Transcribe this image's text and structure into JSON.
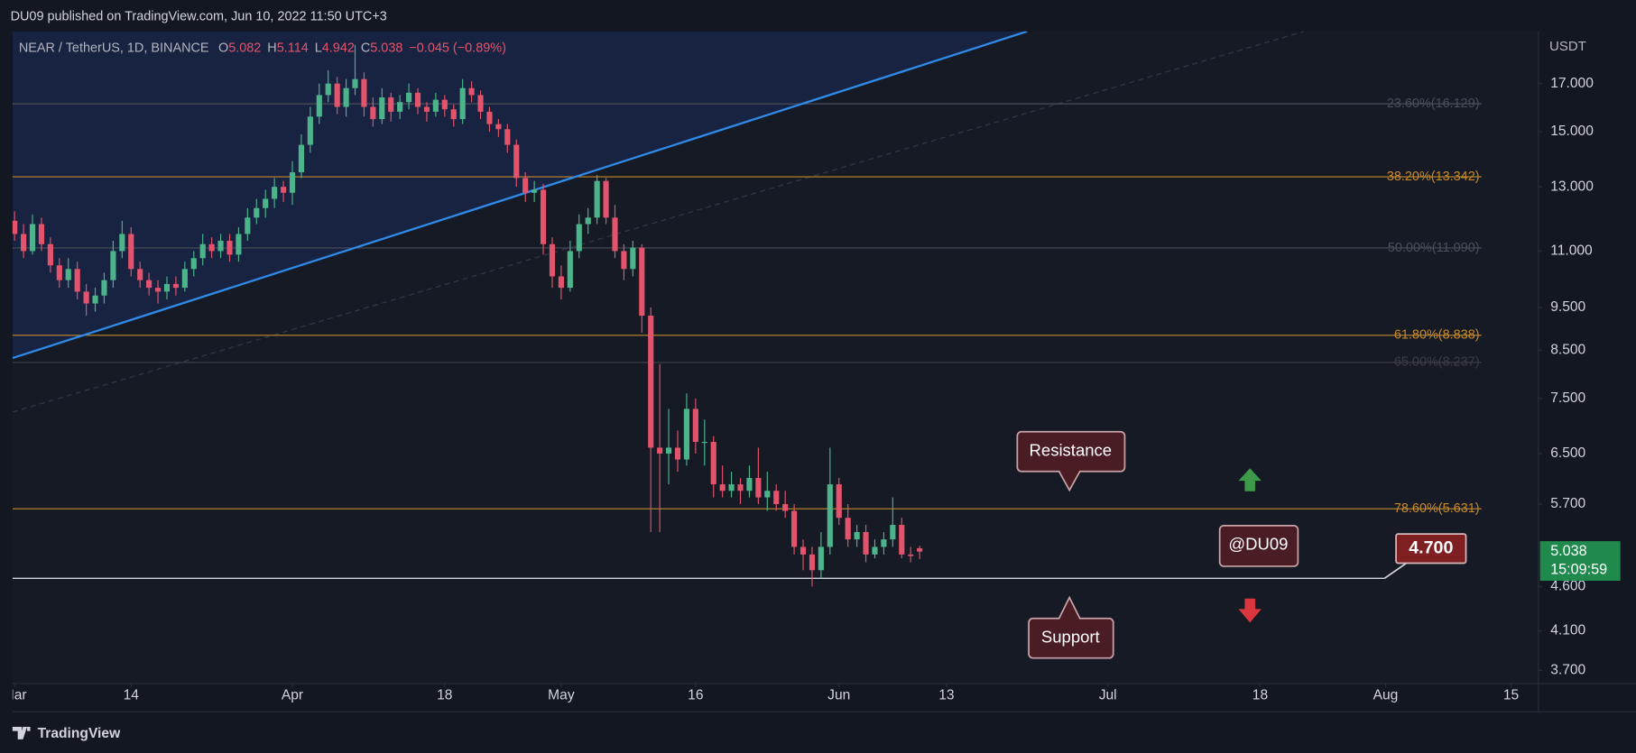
{
  "header": "DU09 published on TradingView.com, Jun 10, 2022 11:50 UTC+3",
  "footer": "TradingView",
  "chart_data": {
    "type": "candlestick",
    "symbol": "NEAR / TetherUS, 1D, BINANCE",
    "ohlc_labels": [
      "O",
      "H",
      "L",
      "C"
    ],
    "change": "−0.045 (−0.89%)",
    "currency": "USDT",
    "log_scale": true,
    "up_color": "#4bb48a",
    "down_color": "#e3536b",
    "x": [
      0,
      1,
      2,
      3,
      4,
      5,
      6,
      7,
      8,
      9,
      10,
      11,
      12,
      13,
      14,
      15,
      16,
      17,
      18,
      19,
      20,
      21,
      22,
      23,
      24,
      25,
      26,
      27,
      28,
      29,
      30,
      31,
      32,
      33,
      34,
      35,
      36,
      37,
      38,
      39,
      40,
      41,
      42,
      43,
      44,
      45,
      46,
      47,
      48,
      49,
      50,
      51,
      52,
      53,
      54,
      55,
      56,
      57,
      58,
      59,
      60,
      61,
      62,
      63,
      64,
      65,
      66,
      67,
      68,
      69,
      70,
      71,
      72,
      73,
      74,
      75,
      76,
      77,
      78,
      79,
      80,
      81,
      82,
      83,
      84,
      85,
      86,
      87,
      88,
      89,
      90,
      91,
      92,
      93,
      94,
      95,
      96,
      97,
      98,
      99,
      100,
      101
    ],
    "ohlc": [
      [
        11.9,
        12.2,
        11.3,
        11.5
      ],
      [
        11.5,
        11.8,
        10.8,
        11.0
      ],
      [
        11.0,
        12.1,
        10.9,
        11.8
      ],
      [
        11.8,
        12.0,
        11.0,
        11.2
      ],
      [
        11.2,
        11.4,
        10.4,
        10.6
      ],
      [
        10.6,
        10.8,
        10.0,
        10.2
      ],
      [
        10.2,
        10.8,
        10.0,
        10.5
      ],
      [
        10.5,
        10.7,
        9.7,
        9.9
      ],
      [
        9.9,
        10.1,
        9.3,
        9.6
      ],
      [
        9.6,
        10.0,
        9.4,
        9.8
      ],
      [
        9.8,
        10.4,
        9.6,
        10.2
      ],
      [
        10.2,
        11.3,
        10.0,
        11.0
      ],
      [
        11.0,
        11.9,
        10.8,
        11.5
      ],
      [
        11.5,
        11.7,
        10.3,
        10.5
      ],
      [
        10.5,
        10.7,
        10.0,
        10.2
      ],
      [
        10.2,
        10.4,
        9.8,
        10.0
      ],
      [
        10.0,
        10.2,
        9.6,
        9.9
      ],
      [
        9.9,
        10.3,
        9.7,
        10.1
      ],
      [
        10.1,
        10.3,
        9.8,
        10.0
      ],
      [
        10.0,
        10.7,
        9.9,
        10.5
      ],
      [
        10.5,
        11.0,
        10.3,
        10.8
      ],
      [
        10.8,
        11.5,
        10.6,
        11.2
      ],
      [
        11.2,
        11.4,
        10.8,
        11.0
      ],
      [
        11.0,
        11.5,
        10.8,
        11.3
      ],
      [
        11.3,
        11.5,
        10.7,
        10.9
      ],
      [
        10.9,
        11.7,
        10.7,
        11.5
      ],
      [
        11.5,
        12.3,
        11.3,
        12.0
      ],
      [
        12.0,
        12.6,
        11.8,
        12.3
      ],
      [
        12.3,
        12.9,
        12.0,
        12.6
      ],
      [
        12.6,
        13.3,
        12.3,
        13.0
      ],
      [
        13.0,
        13.2,
        12.5,
        12.8
      ],
      [
        12.8,
        13.9,
        12.4,
        13.5
      ],
      [
        13.5,
        14.9,
        13.3,
        14.5
      ],
      [
        14.5,
        16.0,
        14.2,
        15.6
      ],
      [
        15.6,
        17.0,
        15.3,
        16.5
      ],
      [
        16.5,
        17.6,
        16.2,
        17.0
      ],
      [
        17.0,
        17.3,
        15.7,
        16.0
      ],
      [
        16.0,
        17.2,
        15.6,
        16.8
      ],
      [
        16.8,
        18.8,
        16.5,
        17.2
      ],
      [
        17.2,
        17.5,
        15.6,
        16.0
      ],
      [
        16.0,
        16.4,
        15.2,
        15.5
      ],
      [
        15.5,
        16.8,
        15.3,
        16.4
      ],
      [
        16.4,
        16.6,
        15.4,
        15.8
      ],
      [
        15.8,
        16.5,
        15.5,
        16.2
      ],
      [
        16.2,
        17.0,
        15.9,
        16.6
      ],
      [
        16.6,
        16.8,
        15.7,
        16.0
      ],
      [
        16.0,
        16.2,
        15.4,
        15.8
      ],
      [
        15.8,
        16.6,
        15.6,
        16.3
      ],
      [
        16.3,
        16.5,
        15.6,
        15.9
      ],
      [
        15.9,
        16.1,
        15.2,
        15.5
      ],
      [
        15.5,
        17.2,
        15.3,
        16.8
      ],
      [
        16.8,
        17.1,
        16.2,
        16.5
      ],
      [
        16.5,
        16.7,
        15.5,
        15.8
      ],
      [
        15.8,
        16.0,
        15.0,
        15.3
      ],
      [
        15.3,
        15.5,
        14.8,
        15.1
      ],
      [
        15.1,
        15.3,
        14.2,
        14.5
      ],
      [
        14.5,
        14.7,
        13.0,
        13.3
      ],
      [
        13.3,
        13.5,
        12.5,
        12.8
      ],
      [
        12.8,
        13.2,
        12.5,
        12.9
      ],
      [
        12.9,
        13.1,
        10.9,
        11.2
      ],
      [
        11.2,
        11.4,
        10.0,
        10.3
      ],
      [
        10.3,
        10.6,
        9.7,
        10.0
      ],
      [
        10.0,
        11.3,
        9.9,
        11.0
      ],
      [
        11.0,
        12.1,
        10.8,
        11.8
      ],
      [
        11.8,
        12.3,
        11.5,
        12.0
      ],
      [
        12.0,
        13.4,
        11.8,
        13.2
      ],
      [
        13.2,
        13.3,
        11.8,
        12.0
      ],
      [
        12.0,
        12.4,
        10.8,
        11.0
      ],
      [
        11.0,
        11.2,
        10.2,
        10.5
      ],
      [
        10.5,
        11.3,
        10.3,
        11.1
      ],
      [
        11.1,
        11.2,
        8.9,
        9.3
      ],
      [
        9.3,
        9.5,
        5.3,
        6.6
      ],
      [
        6.6,
        8.2,
        5.3,
        6.5
      ],
      [
        6.5,
        7.3,
        6.0,
        6.6
      ],
      [
        6.6,
        6.9,
        6.2,
        6.4
      ],
      [
        6.4,
        7.6,
        6.3,
        7.3
      ],
      [
        7.3,
        7.5,
        6.5,
        6.7
      ],
      [
        6.7,
        7.1,
        6.3,
        6.7
      ],
      [
        6.7,
        6.8,
        5.8,
        6.0
      ],
      [
        6.0,
        6.3,
        5.8,
        5.9
      ],
      [
        5.9,
        6.2,
        5.8,
        6.0
      ],
      [
        6.0,
        6.1,
        5.7,
        5.9
      ],
      [
        5.9,
        6.3,
        5.8,
        6.1
      ],
      [
        6.1,
        6.6,
        5.7,
        5.8
      ],
      [
        5.8,
        6.2,
        5.6,
        5.9
      ],
      [
        5.9,
        6.0,
        5.6,
        5.7
      ],
      [
        5.7,
        5.9,
        5.5,
        5.6
      ],
      [
        5.6,
        5.7,
        5.0,
        5.1
      ],
      [
        5.1,
        5.2,
        4.8,
        5.0
      ],
      [
        5.0,
        5.1,
        4.6,
        4.8
      ],
      [
        4.8,
        5.3,
        4.7,
        5.1
      ],
      [
        5.1,
        6.6,
        5.0,
        6.0
      ],
      [
        6.0,
        6.1,
        5.4,
        5.5
      ],
      [
        5.5,
        5.7,
        5.1,
        5.2
      ],
      [
        5.2,
        5.4,
        5.1,
        5.3
      ],
      [
        5.3,
        5.4,
        4.9,
        5.0
      ],
      [
        5.0,
        5.2,
        4.95,
        5.1
      ],
      [
        5.1,
        5.3,
        5.0,
        5.2
      ],
      [
        5.2,
        5.8,
        5.1,
        5.4
      ],
      [
        5.4,
        5.5,
        4.95,
        5.0
      ],
      [
        5.0,
        5.1,
        4.9,
        4.98
      ],
      [
        5.082,
        5.114,
        4.942,
        5.038
      ]
    ],
    "xlim": [
      -0.23,
      170
    ],
    "xticks": [
      {
        "value": 0,
        "label": "Mar"
      },
      {
        "value": 13,
        "label": "14"
      },
      {
        "value": 31,
        "label": "Apr"
      },
      {
        "value": 48,
        "label": "18"
      },
      {
        "value": 61,
        "label": "May"
      },
      {
        "value": 76,
        "label": "16"
      },
      {
        "value": 92,
        "label": "Jun"
      },
      {
        "value": 104,
        "label": "13"
      },
      {
        "value": 122,
        "label": "Jul"
      },
      {
        "value": 139,
        "label": "18"
      },
      {
        "value": 153,
        "label": "Aug"
      },
      {
        "value": 167,
        "label": "15"
      }
    ],
    "ylim": [
      3.58,
      19.47
    ],
    "yticks": [
      {
        "value": 17,
        "label": "17.000"
      },
      {
        "value": 15,
        "label": "15.000"
      },
      {
        "value": 13,
        "label": "13.000"
      },
      {
        "value": 11,
        "label": "11.000"
      },
      {
        "value": 9.5,
        "label": "9.500"
      },
      {
        "value": 8.5,
        "label": "8.500"
      },
      {
        "value": 7.5,
        "label": "7.500"
      },
      {
        "value": 6.5,
        "label": "6.500"
      },
      {
        "value": 5.7,
        "label": "5.700"
      },
      {
        "value": 4.6,
        "label": "4.600"
      },
      {
        "value": 4.1,
        "label": "4.100"
      },
      {
        "value": 3.7,
        "label": "3.700"
      }
    ],
    "fib_levels": [
      {
        "value": 16.129,
        "label": "23.60%(16.129)",
        "color": "#4a4e5c"
      },
      {
        "value": 13.342,
        "label": "38.20%(13.342)",
        "color": "#c4892c"
      },
      {
        "value": 11.09,
        "label": "50.00%(11.090)",
        "color": "#4a4e5c"
      },
      {
        "value": 8.838,
        "label": "61.80%(8.838)",
        "color": "#c4892c"
      },
      {
        "value": 8.237,
        "label": "65.00%(8.237)",
        "color": "#3a3d48"
      },
      {
        "value": 5.631,
        "label": "78.60%(5.631)",
        "color": "#c4892c"
      }
    ],
    "trendline": {
      "x": [
        -0.23,
        113
      ],
      "y": [
        8.33,
        19.47
      ],
      "color": "#2f8ae8"
    },
    "trendline_dashed": {
      "x": [
        -0.23,
        143.9
      ],
      "y": [
        7.24,
        19.47
      ],
      "color": "#33384a"
    },
    "support_level": {
      "value": 4.7,
      "label": "4.700"
    },
    "last_price_countdown": "15:09:59",
    "annotations": [
      "Resistance",
      "Support",
      "@DU09"
    ]
  }
}
